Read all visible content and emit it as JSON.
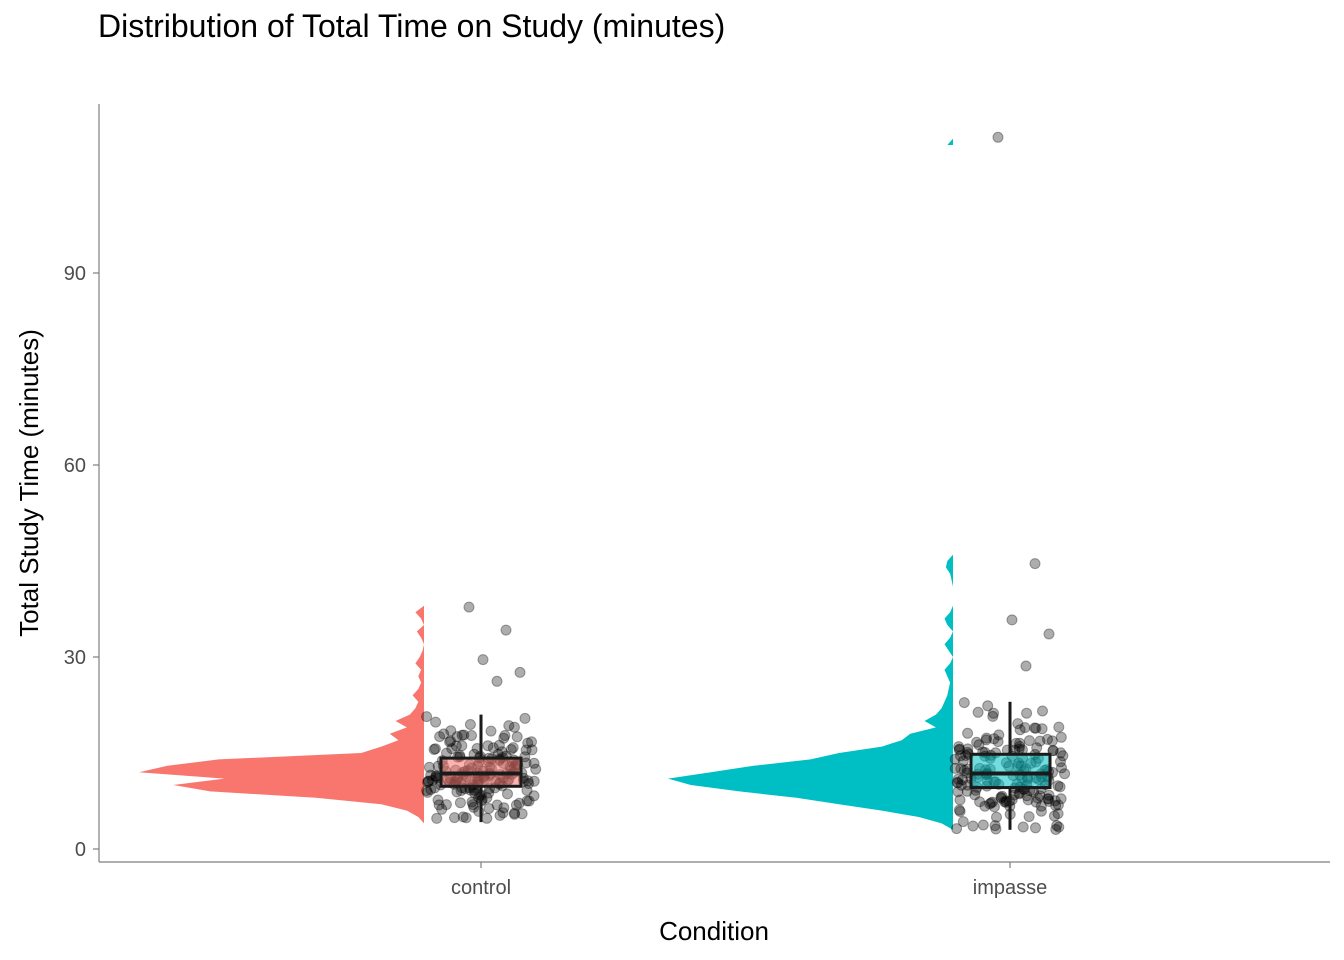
{
  "chart_data": {
    "type": "raincloud",
    "title": "Distribution of Total Time on Study (minutes)",
    "xlabel": "Condition",
    "ylabel": "Total Study Time (minutes)",
    "ylim": [
      -2,
      116
    ],
    "yticks": [
      0,
      30,
      60,
      90
    ],
    "ytick_labels": [
      "0",
      "30",
      "60",
      "90"
    ],
    "categories": [
      "control",
      "impasse"
    ],
    "grid": false,
    "legend": "none",
    "series": [
      {
        "name": "control",
        "color": "#F8766D",
        "box": {
          "whisker_low": 4.2,
          "q1": 9.8,
          "median": 11.8,
          "q3": 14.2,
          "whisker_high": 21.0
        },
        "density": {
          "y": [
            4,
            5,
            6,
            7,
            8,
            9,
            10,
            11,
            12,
            13,
            14,
            15,
            16,
            17,
            18,
            19,
            20,
            21,
            22,
            23,
            24,
            25,
            26,
            27,
            28,
            29,
            30,
            31,
            32,
            33,
            34,
            35,
            36,
            37,
            38
          ],
          "w": [
            0.0,
            0.02,
            0.06,
            0.15,
            0.38,
            0.75,
            0.88,
            0.7,
            1.0,
            0.9,
            0.72,
            0.22,
            0.15,
            0.09,
            0.12,
            0.06,
            0.1,
            0.05,
            0.03,
            0.02,
            0.04,
            0.02,
            0.01,
            0.02,
            0.01,
            0.03,
            0.015,
            0.005,
            0.0,
            0.01,
            0.025,
            0.0,
            0.01,
            0.03,
            0.0
          ]
        },
        "outliers": [
          37.8,
          34.2,
          29.6,
          27.6,
          26.2
        ]
      },
      {
        "name": "impasse",
        "color": "#00BFC4",
        "box": {
          "whisker_low": 3.0,
          "q1": 9.6,
          "median": 11.8,
          "q3": 14.8,
          "whisker_high": 23.0
        },
        "density": {
          "y": [
            3,
            4,
            5,
            6,
            7,
            8,
            9,
            10,
            11,
            12,
            13,
            14,
            15,
            16,
            17,
            18,
            19,
            20,
            21,
            22,
            23,
            24,
            25,
            26,
            27,
            28,
            29,
            30,
            31,
            32,
            33,
            34,
            35,
            36,
            37,
            38,
            39,
            40,
            41,
            42,
            43,
            44,
            45,
            46,
            47,
            48,
            110,
            111
          ],
          "w": [
            0.0,
            0.04,
            0.12,
            0.25,
            0.4,
            0.55,
            0.75,
            0.92,
            1.0,
            0.85,
            0.7,
            0.5,
            0.4,
            0.25,
            0.18,
            0.15,
            0.06,
            0.1,
            0.06,
            0.04,
            0.03,
            0.02,
            0.015,
            0.01,
            0.02,
            0.03,
            0.01,
            0.0,
            0.015,
            0.03,
            0.01,
            0.0,
            0.02,
            0.03,
            0.01,
            0.0,
            0.0,
            0.0,
            0.0,
            0.005,
            0.01,
            0.025,
            0.02,
            0.0,
            0.0,
            0.0,
            0.02,
            0.0
          ]
        },
        "outliers": [
          111.2,
          44.6,
          35.8,
          33.6,
          28.6
        ]
      }
    ]
  }
}
